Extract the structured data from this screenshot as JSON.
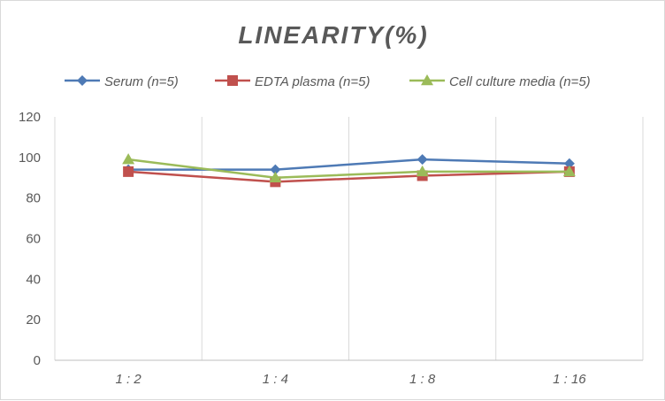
{
  "chart_data": {
    "type": "line",
    "title": "LINEARITY(%)",
    "xlabel": "",
    "ylabel": "",
    "categories": [
      "1:2",
      "1:4",
      "1:8",
      "1:16"
    ],
    "ylim": [
      0,
      120
    ],
    "yticks": [
      0,
      20,
      40,
      60,
      80,
      100,
      120
    ],
    "grid": "vertical-category",
    "legend_position": "top",
    "series": [
      {
        "name": "Serum (n=5)",
        "values": [
          94,
          94,
          99,
          97
        ],
        "color": "#4e7ab5",
        "marker": "diamond"
      },
      {
        "name": "EDTA plasma (n=5)",
        "values": [
          93,
          88,
          91,
          93
        ],
        "color": "#c0504d",
        "marker": "square"
      },
      {
        "name": "Cell culture media (n=5)",
        "values": [
          99,
          90,
          93,
          93
        ],
        "color": "#9bbb59",
        "marker": "triangle"
      }
    ]
  }
}
